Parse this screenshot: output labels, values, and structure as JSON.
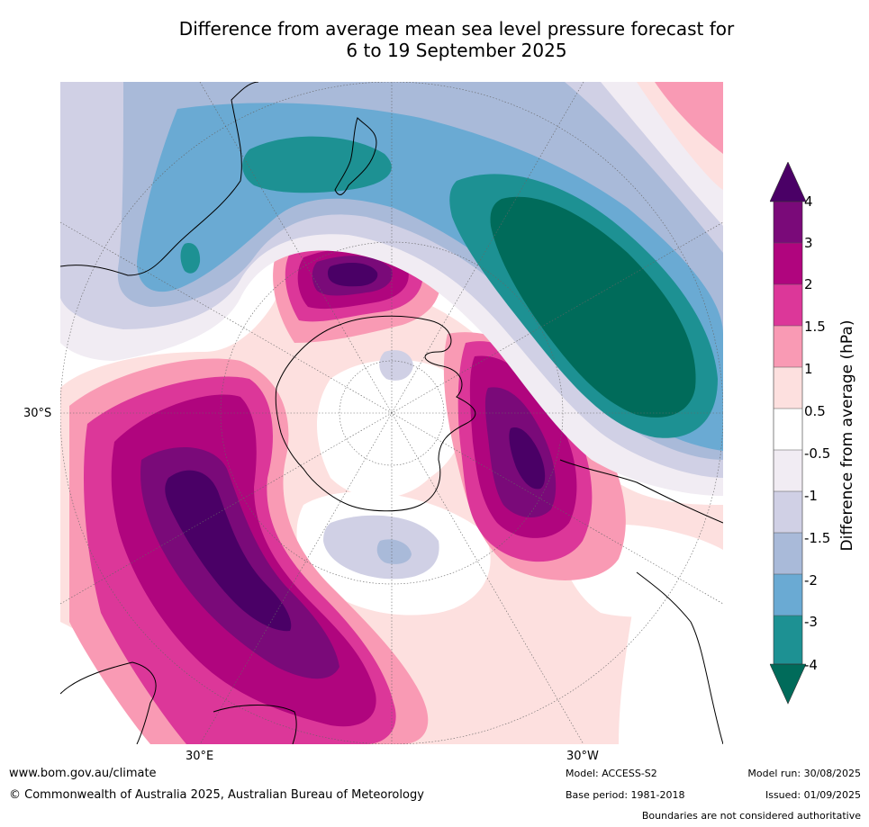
{
  "title_line1": "Difference from average mean sea level pressure forecast for",
  "title_line2": "6 to 19 September 2025",
  "map": {
    "lat_labels": [
      "30°S"
    ],
    "lon_labels": [
      "30°E",
      "30°W"
    ]
  },
  "legend": {
    "title": "Difference from average (hPa)",
    "levels": [
      "4",
      "3",
      "2",
      "1.5",
      "1",
      "0.5",
      "-0.5",
      "-1",
      "-1.5",
      "-2",
      "-3",
      "-4"
    ],
    "colors": {
      "above_4": "#4a0066",
      "3_to_4": "#7a0a79",
      "2_to_3": "#b0057e",
      "1.5_to_2": "#dc3799",
      "1_to_1.5": "#f99ab4",
      "0.5_to_1": "#fde0df",
      "neutral": "#ffffff",
      "-1_to_-0.5": "#f1ecf3",
      "-1.5_to_-1": "#d0d0e5",
      "-2_to_-1.5": "#a9bad9",
      "-3_to_-2": "#6aaad3",
      "-4_to_-3": "#1d9193",
      "below_-4": "#006b5a"
    }
  },
  "footer": {
    "website": "www.bom.gov.au/climate",
    "copyright": "© Commonwealth of Australia 2025, Australian Bureau of Meteorology",
    "model": "Model: ACCESS-S2",
    "base_period": "Base period: 1981-2018",
    "model_run": "Model run: 30/08/2025",
    "issued": "Issued: 01/09/2025",
    "disclaimer": "Boundaries are not considered authoritative"
  }
}
